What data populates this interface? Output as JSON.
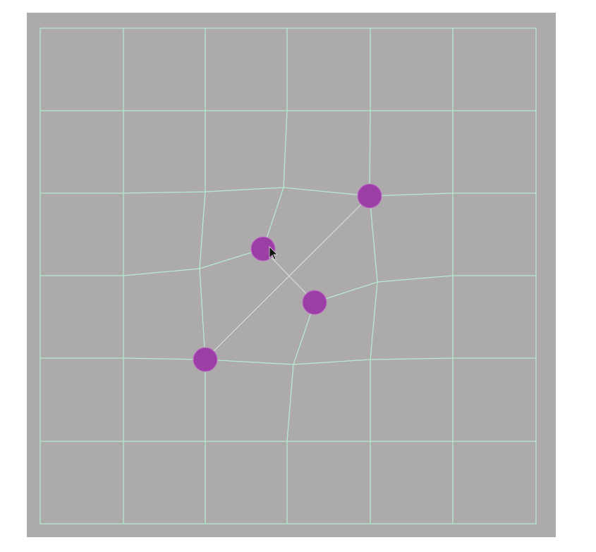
{
  "editor": {
    "tool": "mesh warp",
    "grid": {
      "columns": 6,
      "rows": 6
    },
    "handle_count": 4,
    "colors": {
      "background": "#acaaab",
      "grid_line": "#b8ead0",
      "handle": "#9b3ea6",
      "handle_outline": "#c070c8",
      "link_line": "#d6dcd6"
    },
    "cursor": "arrow-pointer"
  }
}
